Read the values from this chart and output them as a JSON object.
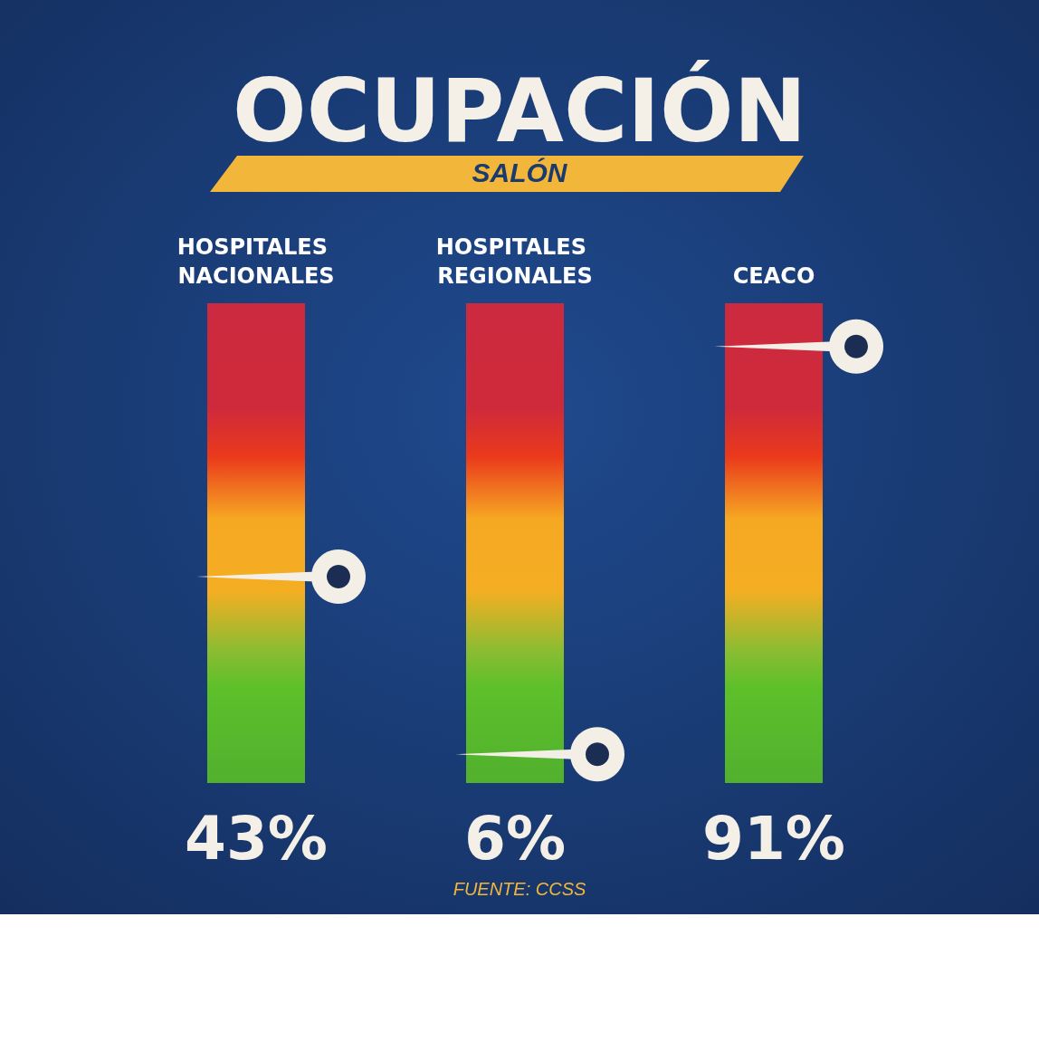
{
  "chart_data": {
    "type": "other",
    "title": "OCUPACIÓN",
    "subtitle": "SALÓN",
    "categories": [
      "HOSPITALES NACIONALES",
      "HOSPITALES REGIONALES",
      "CEACO"
    ],
    "values": [
      43,
      6,
      91
    ],
    "value_labels": [
      "43%",
      "6%",
      "91%"
    ],
    "annotations": [
      "FUENTE: CCSS"
    ]
  }
}
